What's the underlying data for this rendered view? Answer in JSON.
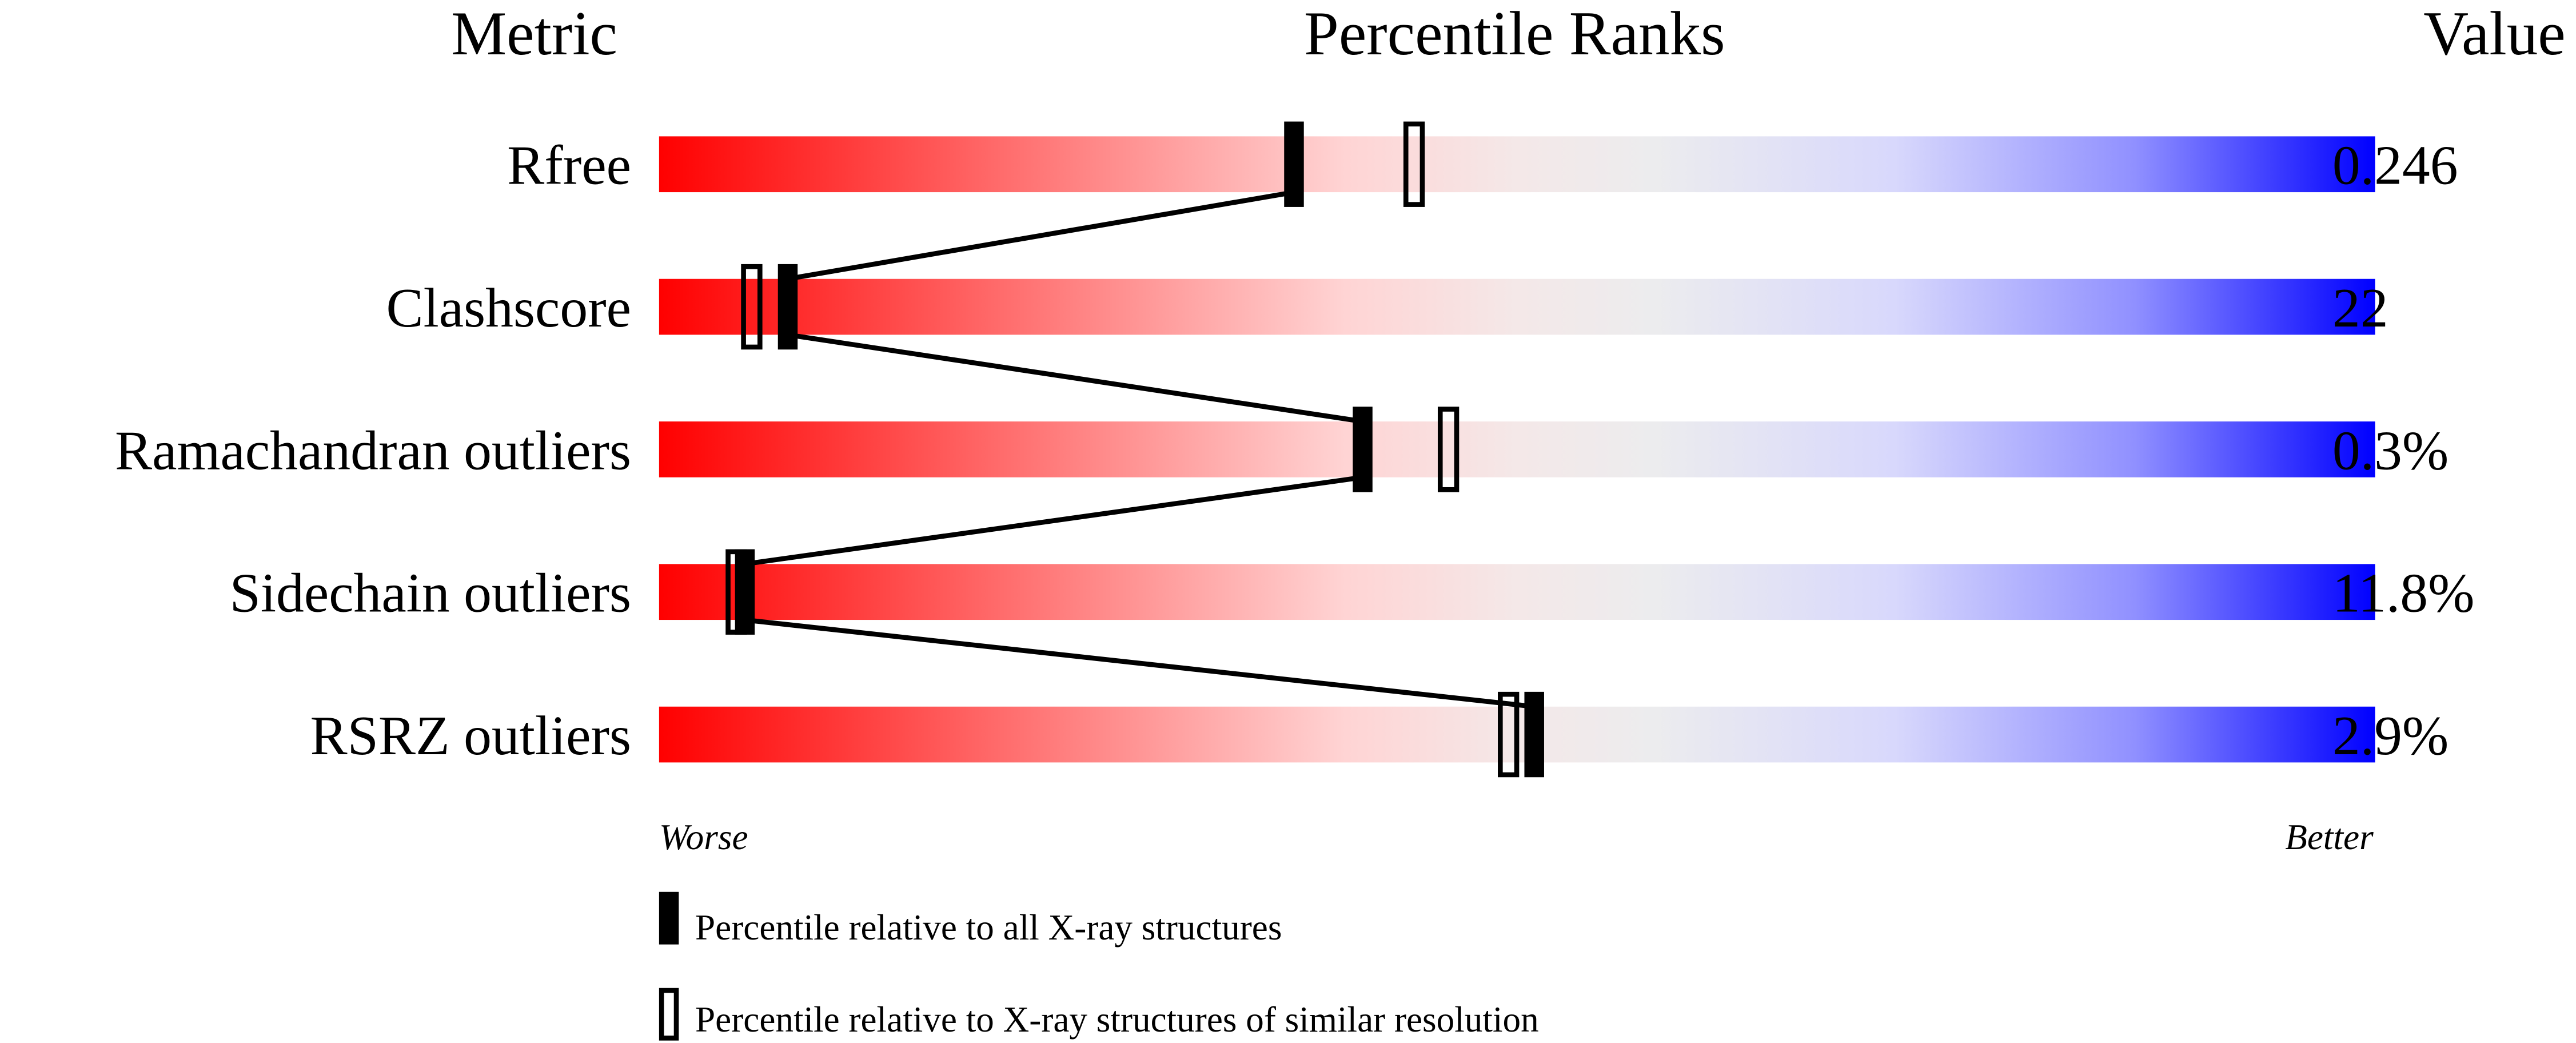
{
  "chart_data": {
    "type": "bar",
    "headers": {
      "metric": "Metric",
      "percentile": "Percentile Ranks",
      "value": "Value"
    },
    "xlim": [
      0,
      100
    ],
    "axis_labels": {
      "left": "Worse",
      "right": "Better"
    },
    "rows": [
      {
        "metric": "Rfree",
        "value": "0.246",
        "percentile_all": 37,
        "percentile_similar": 44
      },
      {
        "metric": "Clashscore",
        "value": "22",
        "percentile_all": 7.5,
        "percentile_similar": 5.4
      },
      {
        "metric": "Ramachandran outliers",
        "value": "0.3%",
        "percentile_all": 41,
        "percentile_similar": 46
      },
      {
        "metric": "Sidechain outliers",
        "value": "11.8%",
        "percentile_all": 5,
        "percentile_similar": 4.5
      },
      {
        "metric": "RSRZ outliers",
        "value": "2.9%",
        "percentile_all": 51,
        "percentile_similar": 49.5
      }
    ],
    "legend": [
      {
        "marker": "filled",
        "label": "Percentile relative to all X-ray structures"
      },
      {
        "marker": "open",
        "label": "Percentile relative to X-ray structures of similar resolution"
      }
    ],
    "colors": {
      "worse": "#ff0000",
      "middle": "#eeeeee",
      "better": "#0000ff",
      "marker": "#000000"
    }
  }
}
